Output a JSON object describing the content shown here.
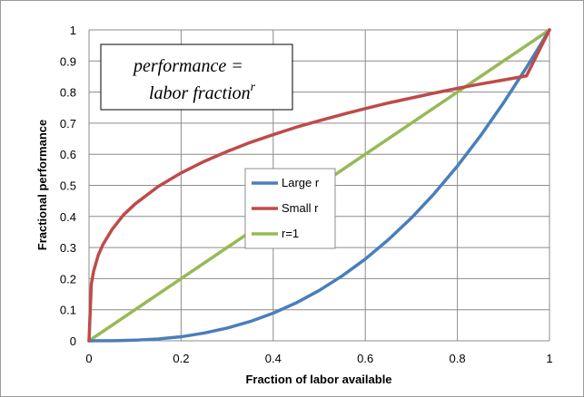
{
  "chart_data": {
    "type": "line",
    "title": "",
    "xlabel": "Fraction of labor available",
    "ylabel": "Fractional performance",
    "xlim": [
      0,
      1
    ],
    "ylim": [
      0,
      1
    ],
    "xticks": [
      0,
      0.2,
      0.4,
      0.6,
      0.8,
      1
    ],
    "xtick_labels": [
      "0",
      "0.2",
      "0.4",
      "0.6",
      "0.8",
      "1"
    ],
    "yticks": [
      0,
      0.1,
      0.2,
      0.3,
      0.4,
      0.5,
      0.6,
      0.7,
      0.8,
      0.9,
      1
    ],
    "ytick_labels": [
      "0",
      "0.1",
      "0.2",
      "0.3",
      "0.4",
      "0.5",
      "0.6",
      "0.7",
      "0.8",
      "0.9",
      "1"
    ],
    "grid": true,
    "legend_position": "center",
    "annotation": {
      "line1": "performance =",
      "line2": "labor fraction",
      "superscript": "r"
    },
    "series": [
      {
        "name": "Large r",
        "color": "#4a7ebb",
        "x": [
          0,
          0.05,
          0.1,
          0.15,
          0.2,
          0.25,
          0.3,
          0.35,
          0.4,
          0.45,
          0.5,
          0.55,
          0.6,
          0.65,
          0.7,
          0.75,
          0.8,
          0.85,
          0.9,
          0.95,
          1
        ],
        "y": [
          0,
          0.0002,
          0.002,
          0.006,
          0.013,
          0.025,
          0.041,
          0.062,
          0.089,
          0.122,
          0.162,
          0.209,
          0.263,
          0.325,
          0.395,
          0.474,
          0.562,
          0.659,
          0.765,
          0.879,
          1
        ]
      },
      {
        "name": "Small r",
        "color": "#be4b48",
        "x": [
          0,
          0.005,
          0.01,
          0.02,
          0.03,
          0.05,
          0.075,
          0.1,
          0.15,
          0.2,
          0.25,
          0.3,
          0.35,
          0.4,
          0.45,
          0.5,
          0.55,
          0.6,
          0.65,
          0.7,
          0.75,
          0.8,
          0.85,
          0.9,
          0.95,
          1
        ],
        "y": [
          0,
          0.182,
          0.224,
          0.275,
          0.309,
          0.358,
          0.405,
          0.44,
          0.496,
          0.54,
          0.577,
          0.609,
          0.638,
          0.663,
          0.687,
          0.708,
          0.728,
          0.747,
          0.765,
          0.781,
          0.797,
          0.812,
          0.826,
          0.839,
          0.852,
          1
        ]
      },
      {
        "name": "r=1",
        "color": "#98b954",
        "x": [
          0,
          1
        ],
        "y": [
          0,
          1
        ]
      }
    ]
  }
}
